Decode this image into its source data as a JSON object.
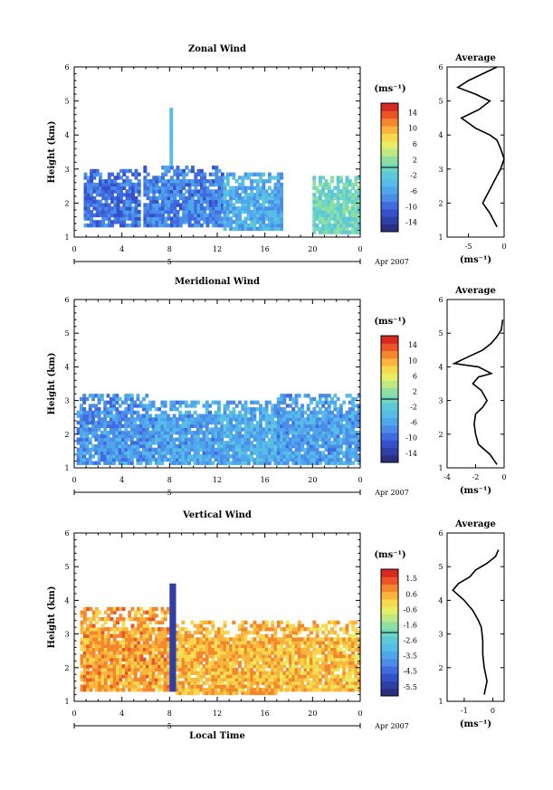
{
  "figure": {
    "x_tick_labels": [
      "0",
      "4",
      "8",
      "12",
      "16",
      "20",
      "0"
    ],
    "date_label": "Apr 2007",
    "day_label": "5",
    "xlabel": "Local Time",
    "ylabel": "Height (km)",
    "y_tick_labels": [
      "1",
      "2",
      "3",
      "4",
      "5",
      "6"
    ],
    "unit_label": "(ms⁻¹)",
    "colorscale": [
      "#2b2f80",
      "#2f3fa8",
      "#3550c8",
      "#3f6ae0",
      "#4a8ce8",
      "#4fa6ec",
      "#58bce8",
      "#5cc8d8",
      "#6fd6c0",
      "#8ee0a0",
      "#bde884",
      "#e6ee66",
      "#f8d84c",
      "#f8b43c",
      "#f4862e",
      "#ec5428",
      "#d42a22"
    ]
  },
  "chart_data": [
    {
      "type": "heatmap",
      "title": "Zonal Wind",
      "xlabel": "",
      "ylabel": "Height (km)",
      "xlim": [
        0,
        24
      ],
      "ylim": [
        1,
        6
      ],
      "colorbar_ticks": [
        "14",
        "10",
        "6",
        "2",
        "-2",
        "-6",
        "-10",
        "-14"
      ],
      "colorbar_range": [
        -16,
        16
      ],
      "field": [
        {
          "t_start": 0.8,
          "t_end": 5.5,
          "z_bottom": 1.3,
          "z_top": 3.0,
          "value": -9
        },
        {
          "t_start": 5.8,
          "t_end": 12.5,
          "z_bottom": 1.3,
          "z_top": 3.1,
          "value": -8
        },
        {
          "t_start": 12.5,
          "t_end": 17.5,
          "z_bottom": 1.2,
          "z_top": 2.9,
          "value": -5
        },
        {
          "t_start": 20.0,
          "t_end": 23.9,
          "z_bottom": 1.1,
          "z_top": 2.8,
          "value": 0
        },
        {
          "t_start": 8.0,
          "t_end": 8.2,
          "z_bottom": 3.1,
          "z_top": 4.8,
          "value": -4
        }
      ]
    },
    {
      "type": "line",
      "title": "Average",
      "xlabel": "(ms⁻¹)",
      "ylabel": "",
      "xlim": [
        -8,
        0
      ],
      "ylim": [
        1,
        6
      ],
      "x_tick_labels": [
        "-5",
        "0"
      ],
      "y_tick_labels": [
        "1",
        "2",
        "3",
        "4",
        "5",
        "6"
      ],
      "x": [
        -1.0,
        -1.5,
        -2.0,
        -2.5,
        -3.0,
        -2.5,
        -2.0,
        -1.5,
        -1.0,
        -0.5,
        0.0,
        -0.5,
        -1.0,
        -2.0,
        -4.0,
        -6.0,
        -3.5,
        -2.0,
        -4.0,
        -6.5,
        -5.0,
        -3.0,
        -1.0
      ],
      "y": [
        1.3,
        1.5,
        1.7,
        1.85,
        2.0,
        2.2,
        2.4,
        2.6,
        2.8,
        3.0,
        3.3,
        3.6,
        3.85,
        4.0,
        4.2,
        4.5,
        4.75,
        5.0,
        5.2,
        5.4,
        5.6,
        5.8,
        6.0
      ]
    },
    {
      "type": "heatmap",
      "title": "Meridional Wind",
      "xlabel": "",
      "ylabel": "Height (km)",
      "xlim": [
        0,
        24
      ],
      "ylim": [
        1,
        6
      ],
      "colorbar_ticks": [
        "14",
        "10",
        "6",
        "2",
        "-2",
        "-6",
        "-10",
        "-14"
      ],
      "colorbar_range": [
        -16,
        16
      ],
      "field": [
        {
          "t_start": 0.2,
          "t_end": 6.0,
          "z_bottom": 1.1,
          "z_top": 3.2,
          "value": -7
        },
        {
          "t_start": 6.0,
          "t_end": 12.0,
          "z_bottom": 1.1,
          "z_top": 3.0,
          "value": -6
        },
        {
          "t_start": 12.0,
          "t_end": 17.5,
          "z_bottom": 1.1,
          "z_top": 3.0,
          "value": -5
        },
        {
          "t_start": 17.0,
          "t_end": 23.9,
          "z_bottom": 1.1,
          "z_top": 3.2,
          "value": -6
        }
      ]
    },
    {
      "type": "line",
      "title": "Average",
      "xlabel": "(ms⁻¹)",
      "ylabel": "",
      "xlim": [
        -4,
        0
      ],
      "ylim": [
        1,
        6
      ],
      "x_tick_labels": [
        "-4",
        "-2",
        "0"
      ],
      "y_tick_labels": [
        "1",
        "2",
        "3",
        "4",
        "5",
        "6"
      ],
      "x": [
        -0.5,
        -1.0,
        -1.8,
        -2.0,
        -2.1,
        -2.0,
        -1.5,
        -1.2,
        -1.6,
        -2.2,
        -1.8,
        -0.9,
        -1.8,
        -3.5,
        -2.5,
        -1.5,
        -0.9,
        -0.5,
        -0.2,
        -0.1
      ],
      "y": [
        1.1,
        1.4,
        1.7,
        2.0,
        2.3,
        2.6,
        2.8,
        3.0,
        3.3,
        3.5,
        3.7,
        3.8,
        4.0,
        4.1,
        4.3,
        4.5,
        4.7,
        4.9,
        5.1,
        5.4
      ]
    },
    {
      "type": "heatmap",
      "title": "Vertical Wind",
      "xlabel": "Local Time",
      "ylabel": "Height (km)",
      "xlim": [
        0,
        24
      ],
      "ylim": [
        1,
        6
      ],
      "colorbar_ticks": [
        "1.5",
        "0.6",
        "-0.6",
        "-1.6",
        "-2.6",
        "-3.5",
        "-4.5",
        "-5.5"
      ],
      "colorbar_range": [
        -6,
        2
      ],
      "field": [
        {
          "t_start": 0.5,
          "t_end": 8.0,
          "z_bottom": 1.3,
          "z_top": 3.8,
          "value": 0.5
        },
        {
          "t_start": 8.5,
          "t_end": 17.0,
          "z_bottom": 1.2,
          "z_top": 3.4,
          "value": 0.3
        },
        {
          "t_start": 17.0,
          "t_end": 23.9,
          "z_bottom": 1.3,
          "z_top": 3.4,
          "value": 0.2
        },
        {
          "t_start": 8.0,
          "t_end": 8.3,
          "z_bottom": 1.3,
          "z_top": 4.5,
          "value": -5.5
        }
      ]
    },
    {
      "type": "line",
      "title": "Average",
      "xlabel": "(ms⁻¹)",
      "ylabel": "",
      "xlim": [
        -1.6,
        0.4
      ],
      "ylim": [
        1,
        6
      ],
      "x_tick_labels": [
        "-1",
        "0"
      ],
      "y_tick_labels": [
        "1",
        "2",
        "3",
        "4",
        "5",
        "6"
      ],
      "x": [
        -0.3,
        -0.2,
        -0.3,
        -0.35,
        -0.35,
        -0.4,
        -0.5,
        -0.7,
        -1.0,
        -1.4,
        -1.2,
        -0.8,
        -0.6,
        -0.2,
        0.1,
        0.2
      ],
      "y": [
        1.2,
        1.6,
        2.0,
        2.4,
        2.8,
        3.2,
        3.4,
        3.7,
        4.0,
        4.3,
        4.5,
        4.7,
        4.9,
        5.1,
        5.3,
        5.5
      ]
    }
  ]
}
